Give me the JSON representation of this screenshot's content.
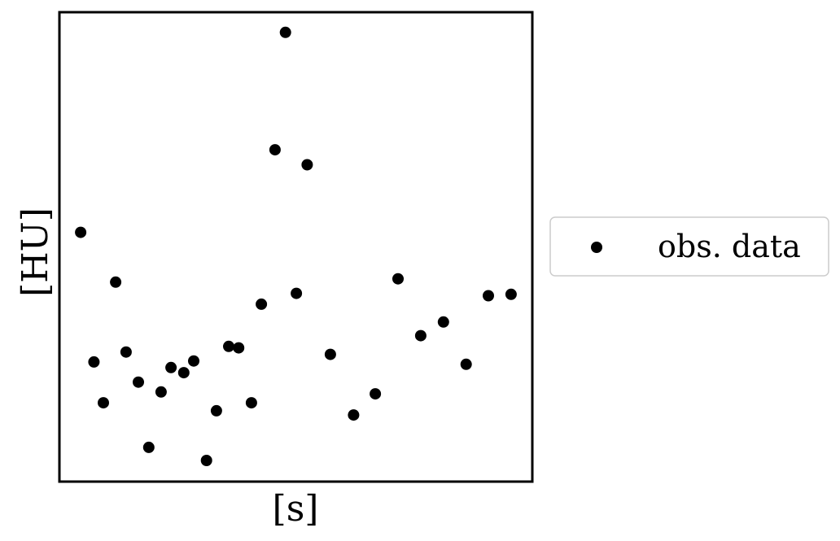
{
  "chart_data": {
    "type": "scatter",
    "xlabel": "[s]",
    "ylabel": "[HU]",
    "xlim": [
      0,
      1
    ],
    "ylim": [
      0,
      1
    ],
    "xticks": [],
    "yticks": [],
    "grid": false,
    "legend_position": "outside-right",
    "series": [
      {
        "name": "obs. data",
        "color": "#000000",
        "marker": "circle",
        "points": [
          {
            "x": 0.045,
            "y": 0.531
          },
          {
            "x": 0.073,
            "y": 0.255
          },
          {
            "x": 0.093,
            "y": 0.168
          },
          {
            "x": 0.119,
            "y": 0.425
          },
          {
            "x": 0.141,
            "y": 0.276
          },
          {
            "x": 0.167,
            "y": 0.212
          },
          {
            "x": 0.189,
            "y": 0.073
          },
          {
            "x": 0.215,
            "y": 0.191
          },
          {
            "x": 0.236,
            "y": 0.243
          },
          {
            "x": 0.263,
            "y": 0.232
          },
          {
            "x": 0.284,
            "y": 0.257
          },
          {
            "x": 0.311,
            "y": 0.045
          },
          {
            "x": 0.332,
            "y": 0.151
          },
          {
            "x": 0.358,
            "y": 0.288
          },
          {
            "x": 0.379,
            "y": 0.285
          },
          {
            "x": 0.406,
            "y": 0.168
          },
          {
            "x": 0.427,
            "y": 0.378
          },
          {
            "x": 0.456,
            "y": 0.707
          },
          {
            "x": 0.478,
            "y": 0.957
          },
          {
            "x": 0.501,
            "y": 0.401
          },
          {
            "x": 0.524,
            "y": 0.675
          },
          {
            "x": 0.573,
            "y": 0.271
          },
          {
            "x": 0.622,
            "y": 0.142
          },
          {
            "x": 0.668,
            "y": 0.187
          },
          {
            "x": 0.716,
            "y": 0.432
          },
          {
            "x": 0.764,
            "y": 0.311
          },
          {
            "x": 0.812,
            "y": 0.34
          },
          {
            "x": 0.86,
            "y": 0.25
          },
          {
            "x": 0.907,
            "y": 0.396
          },
          {
            "x": 0.955,
            "y": 0.399
          }
        ]
      }
    ]
  }
}
